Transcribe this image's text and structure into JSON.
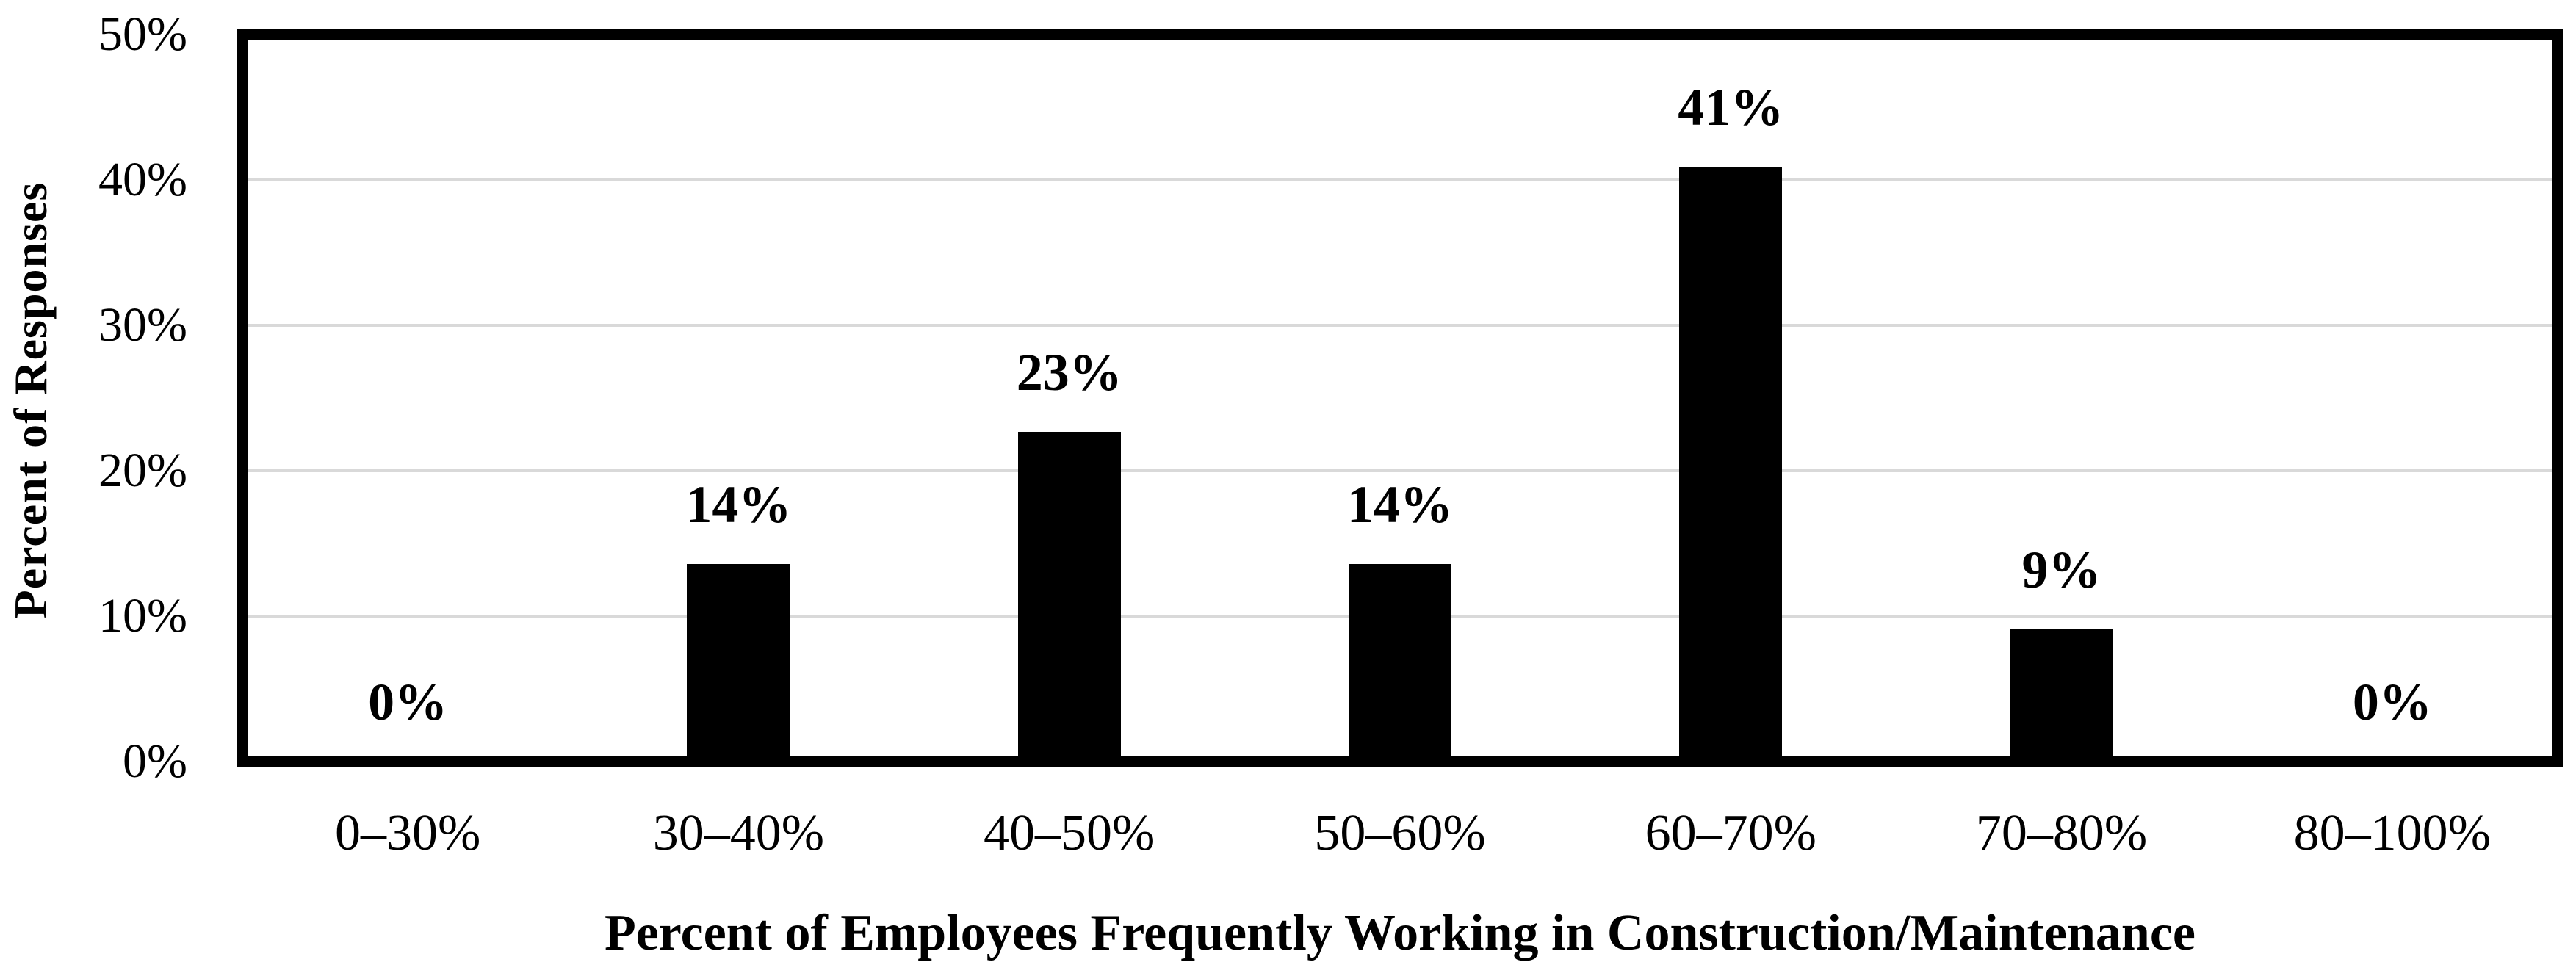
{
  "chart_data": {
    "type": "bar",
    "title": "",
    "categories": [
      "0–30%",
      "30–40%",
      "40–50%",
      "50–60%",
      "60–70%",
      "70–80%",
      "80–100%"
    ],
    "values": [
      0,
      13.6,
      22.7,
      13.6,
      40.9,
      9.1,
      0
    ],
    "value_labels": [
      "0%",
      "14%",
      "23%",
      "14%",
      "41%",
      "9%",
      "0%"
    ],
    "series_name": "Percent of Responses",
    "xlabel": "Percent of Employees Frequently Working in Construction/Maintenance",
    "ylabel": "Percent of Responses",
    "ylim": [
      0,
      50
    ],
    "ytick_labels": [
      "0%",
      "10%",
      "20%",
      "30%",
      "40%",
      "50%"
    ],
    "grid": "horizontal-gridlines-at-10-percent-steps",
    "legend": "none",
    "bar_color": "#000000",
    "gridline_color": "#D9D9D9",
    "frame_color": "#000000",
    "text_color": "#000000",
    "background_color": "#FFFFFF"
  }
}
